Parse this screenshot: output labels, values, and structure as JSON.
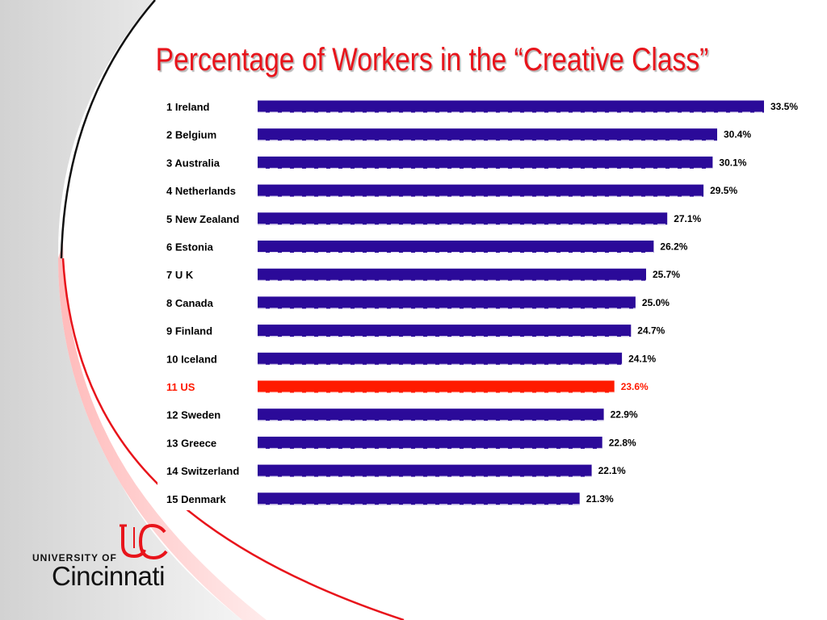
{
  "slide": {
    "title": "Percentage of Workers in the “Creative Class”",
    "colors": {
      "title": "#e8141b",
      "bar": "#2b0a99",
      "highlight": "#ff1a00",
      "arc_red": "#e8141b",
      "arc_dark": "#111111"
    }
  },
  "chart_data": {
    "type": "bar",
    "orientation": "horizontal",
    "categories": [
      "1 Ireland",
      "2 Belgium",
      "3 Australia",
      "4 Netherlands",
      "5 New Zealand",
      "6 Estonia",
      "7 U K",
      "8 Canada",
      "9 Finland",
      "10 Iceland",
      "11 US",
      "12 Sweden",
      "13 Greece",
      "14 Switzerland",
      "15 Denmark"
    ],
    "values": [
      33.5,
      30.4,
      30.1,
      29.5,
      27.1,
      26.2,
      25.7,
      25.0,
      24.7,
      24.1,
      23.6,
      22.9,
      22.8,
      22.1,
      21.3
    ],
    "value_labels": [
      "33.5%",
      "30.4%",
      "30.1%",
      "29.5%",
      "27.1%",
      "26.2%",
      "25.7%",
      "25.0%",
      "24.7%",
      "24.1%",
      "23.6%",
      "22.9%",
      "22.8%",
      "22.1%",
      "21.3%"
    ],
    "highlight_category": "11 US",
    "xlim": [
      0,
      33.5
    ],
    "grid": false,
    "legend": "none",
    "title": "Percentage of Workers in the “Creative Class”"
  },
  "logo": {
    "line1": "UNIVERSITY OF",
    "line2": "Cincinnati",
    "mark": "UC"
  }
}
